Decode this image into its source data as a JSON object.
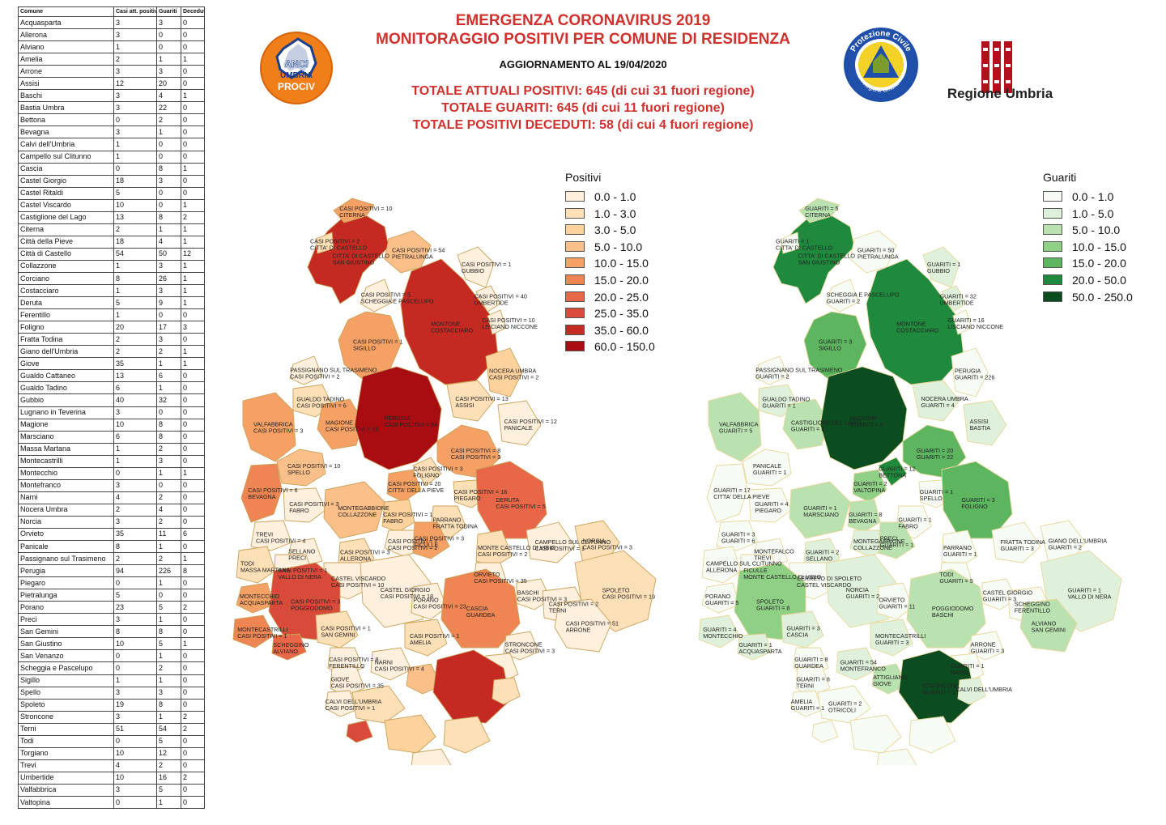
{
  "header": {
    "title_1": "EMERGENZA CORONAVIRUS 2019",
    "title_2": "MONITORAGGIO POSITIVI PER COMUNE DI RESIDENZA",
    "update": "AGGIORNAMENTO AL 19/04/2020",
    "total_positivi": "TOTALE ATTUALI POSITIVI: 645 (di cui 31 fuori regione)",
    "total_guariti": "TOTALE GUARITI: 645 (di cui 11 fuori regione)",
    "total_deceduti": "TOTALE POSITIVI DECEDUTI: 58 (di cui 4 fuori regione)"
  },
  "logos": {
    "anci": {
      "line1": "ANCI",
      "line2": "UMBRIA",
      "line3": "PROCIV"
    },
    "protezione_civile": {
      "top": "Protezione Civile",
      "bottom": "Regione Umbria"
    },
    "regione_umbria": "Regione Umbria"
  },
  "table": {
    "headers": [
      "Comune",
      "Casi att. positivi",
      "Guariti",
      "Deceduti"
    ],
    "rows": [
      [
        "Acquasparta",
        "3",
        "3",
        "0"
      ],
      [
        "Allerona",
        "3",
        "0",
        "0"
      ],
      [
        "Alviano",
        "1",
        "0",
        "0"
      ],
      [
        "Amelia",
        "2",
        "1",
        "1"
      ],
      [
        "Arrone",
        "3",
        "3",
        "0"
      ],
      [
        "Assisi",
        "12",
        "20",
        "0"
      ],
      [
        "Baschi",
        "3",
        "4",
        "1"
      ],
      [
        "Bastia Umbra",
        "3",
        "22",
        "0"
      ],
      [
        "Bettona",
        "0",
        "2",
        "0"
      ],
      [
        "Bevagna",
        "3",
        "1",
        "0"
      ],
      [
        "Calvi dell'Umbria",
        "1",
        "0",
        "0"
      ],
      [
        "Campello sul Clitunno",
        "1",
        "0",
        "0"
      ],
      [
        "Cascia",
        "0",
        "8",
        "1"
      ],
      [
        "Castel Giorgio",
        "18",
        "3",
        "0"
      ],
      [
        "Castel Ritaldi",
        "5",
        "0",
        "0"
      ],
      [
        "Castel Viscardo",
        "10",
        "0",
        "1"
      ],
      [
        "Castiglione del Lago",
        "13",
        "8",
        "2"
      ],
      [
        "Citerna",
        "2",
        "1",
        "1"
      ],
      [
        "Città  della Pieve",
        "18",
        "4",
        "1"
      ],
      [
        "Città  di Castello",
        "54",
        "50",
        "12"
      ],
      [
        "Collazzone",
        "1",
        "3",
        "1"
      ],
      [
        "Corciano",
        "8",
        "26",
        "1"
      ],
      [
        "Costacciaro",
        "1",
        "3",
        "1"
      ],
      [
        "Deruta",
        "5",
        "9",
        "1"
      ],
      [
        "Ferentillo",
        "1",
        "0",
        "0"
      ],
      [
        "Foligno",
        "20",
        "17",
        "3"
      ],
      [
        "Fratta Todina",
        "2",
        "3",
        "0"
      ],
      [
        "Giano dell'Umbria",
        "2",
        "2",
        "1"
      ],
      [
        "Giove",
        "35",
        "1",
        "1"
      ],
      [
        "Gualdo Cattaneo",
        "13",
        "6",
        "0"
      ],
      [
        "Gualdo Tadino",
        "6",
        "1",
        "0"
      ],
      [
        "Gubbio",
        "40",
        "32",
        "0"
      ],
      [
        "Lugnano in Teverina",
        "3",
        "0",
        "0"
      ],
      [
        "Magione",
        "10",
        "8",
        "0"
      ],
      [
        "Marsciano",
        "6",
        "8",
        "0"
      ],
      [
        "Massa Martana",
        "1",
        "2",
        "0"
      ],
      [
        "Montecastrilli",
        "1",
        "3",
        "0"
      ],
      [
        "Montecchio",
        "0",
        "1",
        "1"
      ],
      [
        "Montefranco",
        "3",
        "0",
        "0"
      ],
      [
        "Narni",
        "4",
        "2",
        "0"
      ],
      [
        "Nocera Umbra",
        "2",
        "4",
        "0"
      ],
      [
        "Norcia",
        "3",
        "2",
        "0"
      ],
      [
        "Orvieto",
        "35",
        "11",
        "6"
      ],
      [
        "Panicale",
        "8",
        "1",
        "0"
      ],
      [
        "Passignano sul Trasimeno",
        "2",
        "2",
        "1"
      ],
      [
        "Perugia",
        "94",
        "226",
        "8"
      ],
      [
        "Piegaro",
        "0",
        "1",
        "0"
      ],
      [
        "Pietralunga",
        "5",
        "0",
        "0"
      ],
      [
        "Porano",
        "23",
        "5",
        "2"
      ],
      [
        "Preci",
        "3",
        "1",
        "0"
      ],
      [
        "San Gemini",
        "8",
        "8",
        "0"
      ],
      [
        "San Giustino",
        "10",
        "5",
        "1"
      ],
      [
        "San Venanzo",
        "0",
        "1",
        "0"
      ],
      [
        "Scheggia e Pascelupo",
        "0",
        "2",
        "0"
      ],
      [
        "Sigillo",
        "1",
        "1",
        "0"
      ],
      [
        "Spello",
        "3",
        "3",
        "0"
      ],
      [
        "Spoleto",
        "19",
        "8",
        "0"
      ],
      [
        "Stroncone",
        "3",
        "1",
        "2"
      ],
      [
        "Terni",
        "51",
        "54",
        "2"
      ],
      [
        "Todi",
        "0",
        "5",
        "0"
      ],
      [
        "Torgiano",
        "10",
        "12",
        "0"
      ],
      [
        "Trevi",
        "4",
        "2",
        "0"
      ],
      [
        "Umbertide",
        "10",
        "16",
        "2"
      ],
      [
        "Valfabbrica",
        "3",
        "5",
        "0"
      ],
      [
        "Valtopina",
        "0",
        "1",
        "0"
      ]
    ]
  },
  "legend_positivi": {
    "title": "Positivi",
    "items": [
      {
        "label": "0.0 - 1.0",
        "color": "#fef0dd"
      },
      {
        "label": "1.0 - 3.0",
        "color": "#fde0b8"
      },
      {
        "label": "3.0 - 5.0",
        "color": "#fdd29c"
      },
      {
        "label": "5.0 - 10.0",
        "color": "#fbbf8a"
      },
      {
        "label": "10.0 - 15.0",
        "color": "#f5a166"
      },
      {
        "label": "15.0 - 20.0",
        "color": "#ef8552"
      },
      {
        "label": "20.0 - 25.0",
        "color": "#e76748"
      },
      {
        "label": "25.0 - 35.0",
        "color": "#d84a3a"
      },
      {
        "label": "35.0 - 60.0",
        "color": "#c42a22"
      },
      {
        "label": "60.0 - 150.0",
        "color": "#a80d12"
      }
    ]
  },
  "legend_guariti": {
    "title": "Guariti",
    "items": [
      {
        "label": "0.0 - 1.0",
        "color": "#f6fbf4"
      },
      {
        "label": "1.0 - 5.0",
        "color": "#dff1da"
      },
      {
        "label": "5.0 - 10.0",
        "color": "#b9e2b0"
      },
      {
        "label": "10.0 - 15.0",
        "color": "#8fcf86"
      },
      {
        "label": "15.0 - 20.0",
        "color": "#5db560"
      },
      {
        "label": "20.0 - 50.0",
        "color": "#1f8a3d"
      },
      {
        "label": "50.0 - 250.0",
        "color": "#0b4d20"
      }
    ]
  },
  "map_positivi_labels": [
    "CITTA' DI CASTELLO",
    "SAN GIUSTINO",
    "CASI POSITIVI = 10",
    "CITERNA",
    "CASI POSITIVI = 2",
    "CITTA' DI CASTELLO",
    "CASI POSITIVI = 54",
    "PIETRALUNGA",
    "CASI POSITIVI = 5",
    "SCHEGGIA E PASCELUPO",
    "MONTONE",
    "COSTACCIARO",
    "CASI POSITIVI = 1",
    "SIGILLO",
    "CASI POSITIVI = 1",
    "GUBBIO",
    "CASI POSITIVI = 40",
    "UMBERTIDE",
    "CASI POSITIVI = 10",
    "LISCIANO NICCONE",
    "PASSIGNANO SUL TRASIMENO",
    "CASI POSITIVI = 2",
    "GUALDO TADINO",
    "CASI POSITIVI = 6",
    "VALFABBRICA",
    "CASI POSITIVI = 3",
    "MAGIONE",
    "CASI POSITIVI = 10",
    "PERUGIA",
    "CASI POSITIVI = 94",
    "NOCERA UMBRA",
    "CASI POSITIVI = 2",
    "CASI POSITIVI = 13",
    "ASSISI",
    "CASI POSITIVI = 12",
    "PANICALE",
    "CASI POSITIVI = 8",
    "CASI POSITIVI = 3",
    "CASI POSITIVI = 10",
    "SPELLO",
    "CASI POSITIVI = 3",
    "FOLIGNO",
    "CASI POSITIVI = 20",
    "CITTA' DELLA PIEVE",
    "CASI POSITIVI = 18",
    "PIEGARO",
    "DERUTA",
    "CASI POSITIVI = 5",
    "CASI POSITIVI = 6",
    "BEVAGNA",
    "CASI POSITIVI = 3",
    "FABRO",
    "MONTEGABBIONE",
    "COLLAZZONE",
    "CASI POSITIVI = 1",
    "FABRO",
    "PARRANO",
    "FRATTA TODINA",
    "CASI POSITIVI = 2",
    "CASI POSITIVI = 2",
    "TREVI",
    "CASI POSITIVI = 4",
    "SELLANO",
    "PRECI",
    "CASI POSITIVI = 3",
    "ALLERONA",
    "CASI POSITIVI = 3",
    "FICULLE",
    "MONTE CASTELLO DI VIBIO",
    "CASI POSITIVI = 2",
    "CAMPELLO SUL CLITUNNO",
    "CASI POSITIVI = 1",
    "NORCIA",
    "CASI POSITIVI = 3",
    "TODI",
    "MASSA MARTANA",
    "CASI POSITIVI = 1",
    "VALLO DI NERA",
    "CASTEL VISCARDO",
    "CASI POSITIVI = 10",
    "ORVIETO",
    "CASI POSITIVI = 35",
    "SPOLETO",
    "CASI POSITIVI = 19",
    "CASTEL GIORGIO",
    "CASI POSITIVI = 18",
    "PORANO",
    "CASI POSITIVI = 23",
    "BASCHI",
    "CASI POSITIVI = 3",
    "MONTECCHIO",
    "ACQUASPARTA",
    "CASI POSITIVI = 3",
    "POGGIODOMO",
    "CASCIA",
    "GUARDEA",
    "MONTECASTRILLI",
    "CASI POSITIVI = 1",
    "SCHEGGINO",
    "ALVIANO",
    "CASI POSITIVI = 1",
    "SAN GEMINI",
    "CASI POSITIVI = 8",
    "FERENTILLO",
    "CASI POSITIVI = 1",
    "AMELIA",
    "CASI POSITIVI = 2",
    "TERNI",
    "CASI POSITIVI = 51",
    "ARRONE",
    "GIOVE",
    "CASI POSITIVI = 35",
    "NARNI",
    "CASI POSITIVI = 4",
    "STRONCONE",
    "CASI POSITIVI = 3",
    "CALVI DELL'UMBRIA",
    "CASI POSITIVI = 1"
  ],
  "map_guariti_labels": [
    "CITTA' DI CASTELLO",
    "SAN GIUSTINO",
    "GUARITI = 5",
    "CITERNA",
    "GUARITI = 1",
    "CITTA' DI CASTELLO",
    "GUARITI = 50",
    "PIETRALUNGA",
    "SCHEGGIA E PASCELUPO",
    "GUARITI = 2",
    "MONTONE",
    "COSTACCIARO",
    "GUARITI = 3",
    "SIGILLO",
    "GUARITI = 1",
    "GUBBIO",
    "GUARITI = 32",
    "UMBERTIDE",
    "GUARITI = 16",
    "LISCIANO NICCONE",
    "PASSIGNANO SUL TRASIMENO",
    "GUARITI = 2",
    "GUALDO TADINO",
    "GUARITI = 1",
    "VALFABBRICA",
    "GUARITI = 5",
    "CASTIGLIONE DEL LAGO",
    "GUARITI = 8",
    "MAGIONE",
    "GUARITI = 8",
    "PERUGIA",
    "GUARITI = 226",
    "NOCERA UMBRA",
    "GUARITI = 4",
    "ASSISI",
    "BASTIA",
    "GUARITI = 20",
    "GUARITI = 22",
    "PANICALE",
    "GUARITI = 1",
    "GUARITI = 12",
    "BETTONA",
    "GUARITI = 2",
    "VALTOPINA",
    "GUARITI = 1",
    "SPELLO",
    "GUARITI = 3",
    "FOLIGNO",
    "GUARITI = 17",
    "CITTA' DELLA PIEVE",
    "GUARITI = 4",
    "PIEGARO",
    "GUARITI = 1",
    "MARSCIANO",
    "GUARITI = 8",
    "BEVAGNA",
    "GUARITI = 1",
    "FABRO",
    "MONTEGABBIONE",
    "COLLAZZONE",
    "GUARITI = 3",
    "GUARITI = 6",
    "MONTEFALCO",
    "TREVI",
    "GUARITI = 2",
    "SELLANO",
    "PRECI",
    "GUARITI = 1",
    "PARRANO",
    "GUARITI = 1",
    "FRATTA TODINA",
    "GUARITI = 3",
    "GIANO DELL'UMBRIA",
    "GUARITI = 2",
    "CAMPELLO SUL CLITUNNO",
    "ALLERONA",
    "FICULLE",
    "MONTE CASTELLO DI VIBIO",
    "CERRETO DI SPOLETO",
    "CASTEL VISCARDO",
    "TODI",
    "GUARITI = 5",
    "GUARITI = 1",
    "VALLO DI NERA",
    "NORCIA",
    "GUARITI = 2",
    "ORVIETO",
    "GUARITI = 11",
    "CASTEL GIORGIO",
    "GUARITI = 3",
    "PORANO",
    "GUARITI = 5",
    "SPOLETO",
    "GUARITI = 8",
    "POGGIODOMO",
    "BASCHI",
    "GUARITI = 4",
    "MONTECCHIO",
    "GUARITI = 1",
    "ACQUASPARTA",
    "GUARITI = 3",
    "CASCIA",
    "GUARITI = 8",
    "GUARDEA",
    "MONTECASTRILLI",
    "GUARITI = 3",
    "SCHEGGINO",
    "FERENTILLO",
    "ALVIANO",
    "SAN GEMINI",
    "GUARITI = 8",
    "TERNI",
    "GUARITI = 54",
    "MONTEFRANCO",
    "ARRONE",
    "GUARITI = 3",
    "AMELIA",
    "GUARITI = 1",
    "ATTIGLIANO",
    "GIOVE",
    "GUARITI = 1",
    "NARNI",
    "GUARITI = 2",
    "OTRICOLI",
    "STRONCONE",
    "GUARITI = 1",
    "CALVI DELL'UMBRIA"
  ]
}
